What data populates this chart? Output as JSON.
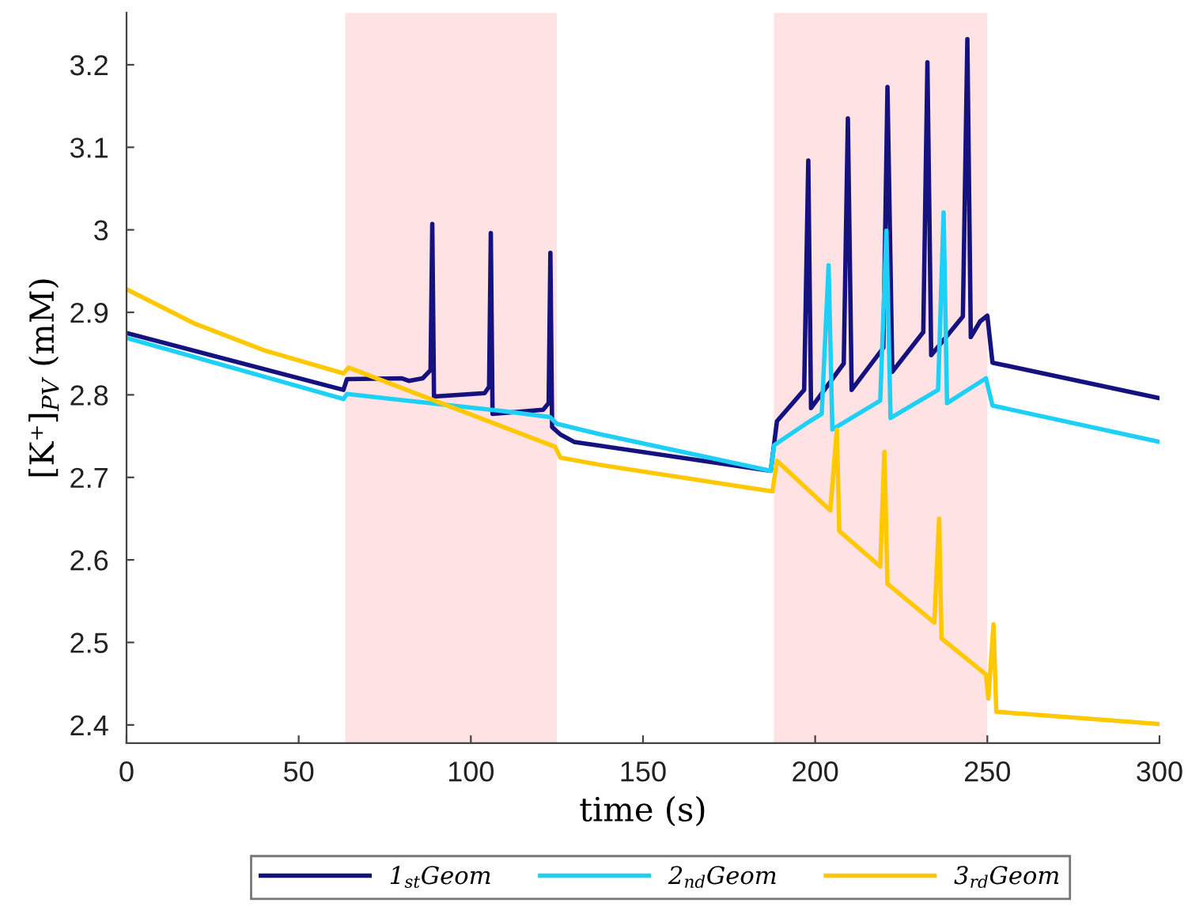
{
  "chart_data": {
    "type": "line",
    "xlabel": "time (s)",
    "ylabel": "[K⁺]$_{PV}$ (mM)",
    "xlim": [
      0,
      300
    ],
    "xticks": [
      0,
      50,
      100,
      150,
      200,
      250,
      300
    ],
    "ylim": [
      2.378,
      3.263
    ],
    "yticks": [
      2.4,
      2.5,
      2.6,
      2.7,
      2.8,
      2.9,
      3,
      3.1,
      3.2
    ],
    "grid": false,
    "legend": "bottom",
    "line_style": "solid",
    "marker": "none",
    "bands": [
      {
        "axis": "x",
        "from": 63.5,
        "to": 125,
        "color": "#ffe3e4"
      },
      {
        "axis": "x",
        "from": 188,
        "to": 250,
        "color": "#ffe3e4"
      }
    ],
    "series": [
      {
        "name": "1$_{st}$Geom",
        "color": "#15127f",
        "x": [
          0,
          63,
          64,
          80,
          82,
          86,
          88.3,
          88.8,
          89.3,
          104,
          105.3,
          105.8,
          106.3,
          121,
          122.6,
          123.1,
          123.6,
          126,
          130,
          187.1,
          188.9,
          196.8,
          198,
          198.8,
          208.3,
          209.5,
          210.6,
          219.8,
          221,
          222.4,
          231.4,
          232.6,
          233.7,
          242.9,
          244.2,
          245.2,
          247.9,
          250,
          251.5,
          300
        ],
        "values": [
          2.875,
          2.806,
          2.819,
          2.82,
          2.817,
          2.82,
          2.83,
          3.007,
          2.798,
          2.802,
          2.81,
          2.996,
          2.777,
          2.782,
          2.79,
          2.972,
          2.761,
          2.752,
          2.743,
          2.708,
          2.768,
          2.806,
          3.084,
          2.784,
          2.838,
          3.135,
          2.806,
          2.857,
          3.173,
          2.828,
          2.876,
          3.203,
          2.848,
          2.895,
          3.231,
          2.87,
          2.889,
          2.896,
          2.839,
          2.796
        ]
      },
      {
        "name": "2$_{nd}$Geom",
        "color": "#1ed0f5",
        "x": [
          0,
          63,
          64,
          88,
          110,
          123,
          125,
          137.8,
          187.1,
          188.1,
          197.3,
          201.9,
          203.9,
          205,
          218.9,
          220.7,
          221.9,
          235.7,
          237.3,
          238.3,
          249.6,
          251.5,
          300
        ],
        "values": [
          2.869,
          2.795,
          2.801,
          2.79,
          2.78,
          2.773,
          2.765,
          2.752,
          2.708,
          2.739,
          2.765,
          2.777,
          2.957,
          2.758,
          2.793,
          2.999,
          2.772,
          2.806,
          3.021,
          2.79,
          2.82,
          2.787,
          2.743
        ]
      },
      {
        "name": "3$_{rd}$Geom",
        "color": "#ffc800",
        "x": [
          0,
          20,
          40,
          63,
          64.5,
          124.5,
          126,
          137.8,
          187.6,
          188.9,
          204.4,
          206.3,
          207,
          218.9,
          220.1,
          221,
          234.6,
          236,
          236.7,
          249.6,
          250.3,
          251.8,
          252.6,
          300
        ],
        "values": [
          2.928,
          2.886,
          2.854,
          2.826,
          2.833,
          2.737,
          2.724,
          2.715,
          2.683,
          2.72,
          2.66,
          2.758,
          2.635,
          2.592,
          2.731,
          2.571,
          2.524,
          2.65,
          2.505,
          2.461,
          2.432,
          2.522,
          2.416,
          2.401
        ]
      }
    ]
  }
}
